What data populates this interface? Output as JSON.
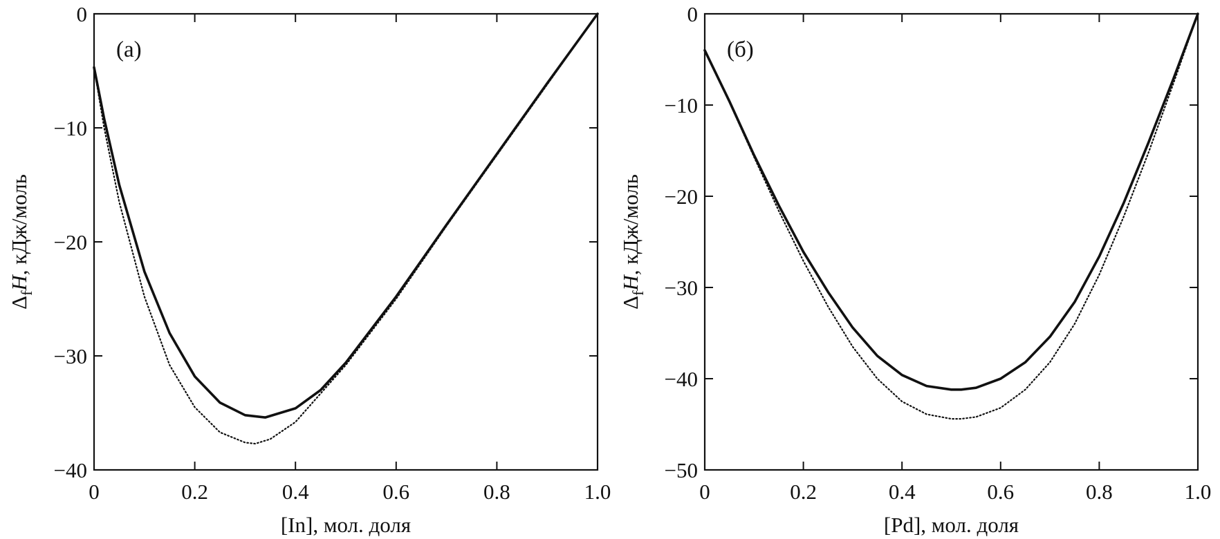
{
  "chart_data": [
    {
      "type": "line",
      "panel_label": "(a)",
      "xlabel": "[In], мол. доля",
      "ylabel_symbol": "Δ",
      "ylabel_sub": "f",
      "ylabel_var": "H",
      "ylabel_units": ", кДж/моль",
      "xlim": [
        0,
        1.0
      ],
      "ylim": [
        -40,
        0
      ],
      "xticks": [
        0,
        0.2,
        0.4,
        0.6,
        0.8,
        1.0
      ],
      "xtick_labels": [
        "0",
        "0.2",
        "0.4",
        "0.6",
        "0.8",
        "1.0"
      ],
      "yticks": [
        0,
        -10,
        -20,
        -30,
        -40
      ],
      "ytick_labels": [
        "0",
        "−10",
        "−20",
        "−30",
        "−40"
      ],
      "grid": false,
      "series": [
        {
          "style": "solid",
          "x": [
            0,
            0.02,
            0.05,
            0.1,
            0.15,
            0.2,
            0.25,
            0.3,
            0.34,
            0.4,
            0.45,
            0.5,
            0.6,
            0.7,
            0.8,
            0.9,
            1.0
          ],
          "y": [
            -4.7,
            -9.2,
            -15.0,
            -22.6,
            -28.0,
            -31.8,
            -34.1,
            -35.2,
            -35.4,
            -34.6,
            -33.0,
            -30.6,
            -24.8,
            -18.5,
            -12.3,
            -6.1,
            0
          ]
        },
        {
          "style": "dotted",
          "x": [
            0,
            0.02,
            0.05,
            0.1,
            0.15,
            0.2,
            0.25,
            0.3,
            0.32,
            0.35,
            0.4,
            0.45,
            0.5,
            0.6,
            0.7,
            0.8,
            0.9,
            1.0
          ],
          "y": [
            -4.7,
            -10.0,
            -16.5,
            -24.8,
            -30.8,
            -34.5,
            -36.7,
            -37.6,
            -37.7,
            -37.3,
            -35.8,
            -33.3,
            -30.8,
            -25.0,
            -18.6,
            -12.4,
            -6.2,
            0
          ]
        }
      ]
    },
    {
      "type": "line",
      "panel_label": "(б)",
      "xlabel": "[Pd], мол. доля",
      "ylabel_symbol": "Δ",
      "ylabel_sub": "f",
      "ylabel_var": "H",
      "ylabel_units": ", кДж/моль",
      "xlim": [
        0,
        1.0
      ],
      "ylim": [
        -50,
        0
      ],
      "xticks": [
        0,
        0.2,
        0.4,
        0.6,
        0.8,
        1.0
      ],
      "xtick_labels": [
        "0",
        "0.2",
        "0.4",
        "0.6",
        "0.8",
        "1.0"
      ],
      "yticks": [
        0,
        -10,
        -20,
        -30,
        -40,
        -50
      ],
      "ytick_labels": [
        "0",
        "−10",
        "−20",
        "−30",
        "−40",
        "−50"
      ],
      "grid": false,
      "series": [
        {
          "style": "solid",
          "x": [
            0,
            0.05,
            0.1,
            0.15,
            0.2,
            0.25,
            0.3,
            0.35,
            0.4,
            0.45,
            0.5,
            0.52,
            0.55,
            0.6,
            0.65,
            0.7,
            0.75,
            0.8,
            0.85,
            0.9,
            0.95,
            1.0
          ],
          "y": [
            -4.0,
            -9.6,
            -15.5,
            -21.0,
            -26.1,
            -30.5,
            -34.4,
            -37.5,
            -39.6,
            -40.8,
            -41.2,
            -41.2,
            -41.0,
            -40.0,
            -38.2,
            -35.4,
            -31.6,
            -26.6,
            -20.7,
            -14.1,
            -7.2,
            0
          ]
        },
        {
          "style": "dotted",
          "x": [
            0,
            0.05,
            0.1,
            0.15,
            0.2,
            0.25,
            0.3,
            0.35,
            0.4,
            0.45,
            0.5,
            0.52,
            0.55,
            0.6,
            0.65,
            0.7,
            0.75,
            0.8,
            0.85,
            0.9,
            0.95,
            1.0
          ],
          "y": [
            -4.0,
            -9.7,
            -15.7,
            -21.6,
            -27.1,
            -32.1,
            -36.5,
            -40.0,
            -42.5,
            -43.9,
            -44.4,
            -44.4,
            -44.2,
            -43.2,
            -41.2,
            -38.2,
            -34.0,
            -28.6,
            -22.2,
            -15.2,
            -7.7,
            0
          ]
        }
      ]
    }
  ]
}
